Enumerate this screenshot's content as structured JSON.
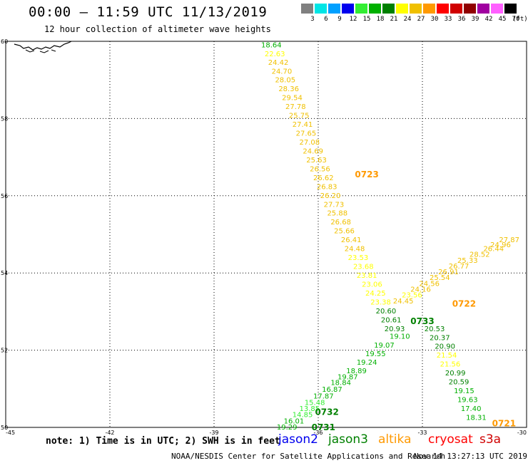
{
  "header": {
    "title": "00:00 – 11:59 UTC 11/13/2019",
    "subtitle": "12 hour collection of altimeter wave heights"
  },
  "legend": {
    "unit": "(ft)",
    "bins": [
      {
        "label": "3",
        "color": "#808080"
      },
      {
        "label": "6",
        "color": "#00e5e5"
      },
      {
        "label": "9",
        "color": "#00a0ff"
      },
      {
        "label": "12",
        "color": "#0000ee"
      },
      {
        "label": "15",
        "color": "#33ee33"
      },
      {
        "label": "18",
        "color": "#00b000"
      },
      {
        "label": "21",
        "color": "#008000"
      },
      {
        "label": "24",
        "color": "#ffff00"
      },
      {
        "label": "27",
        "color": "#f0c000"
      },
      {
        "label": "30",
        "color": "#ff9900"
      },
      {
        "label": "33",
        "color": "#ff0000"
      },
      {
        "label": "36",
        "color": "#d00000"
      },
      {
        "label": "39",
        "color": "#900000"
      },
      {
        "label": "42",
        "color": "#a000a0"
      },
      {
        "label": "45",
        "color": "#ff60ff"
      },
      {
        "label": "70",
        "color": "#000000"
      }
    ]
  },
  "map": {
    "lat_range": [
      50,
      60
    ],
    "lon_range": [
      -45,
      -30
    ],
    "lat_ticks": [
      "50",
      "52",
      "54",
      "56",
      "58",
      "60"
    ],
    "lon_ticks": [
      "-45",
      "-42",
      "-39",
      "-36",
      "-33",
      "-30"
    ],
    "grid": true
  },
  "tracks": [
    {
      "id": "0723",
      "satellite": "altika",
      "label_color": "#ff9900",
      "label_lat": 56.55,
      "label_lon": -34.6,
      "points": [
        {
          "v": "18.64",
          "lat": 59.9,
          "lon": -37.35,
          "c": "#00b000"
        },
        {
          "v": "22.63",
          "lat": 59.67,
          "lon": -37.25,
          "c": "#ffff00"
        },
        {
          "v": "24.42",
          "lat": 59.45,
          "lon": -37.15,
          "c": "#f0c000"
        },
        {
          "v": "24.70",
          "lat": 59.22,
          "lon": -37.05,
          "c": "#f0c000"
        },
        {
          "v": "28.05",
          "lat": 58.99,
          "lon": -36.95,
          "c": "#f0c000"
        },
        {
          "v": "28.36",
          "lat": 58.76,
          "lon": -36.85,
          "c": "#f0c000"
        },
        {
          "v": "29.54",
          "lat": 58.53,
          "lon": -36.75,
          "c": "#f0c000"
        },
        {
          "v": "27.78",
          "lat": 58.3,
          "lon": -36.65,
          "c": "#f0c000"
        },
        {
          "v": "25.75",
          "lat": 58.07,
          "lon": -36.55,
          "c": "#f0c000"
        },
        {
          "v": "27.41",
          "lat": 57.84,
          "lon": -36.45,
          "c": "#f0c000"
        },
        {
          "v": "27.65",
          "lat": 57.61,
          "lon": -36.35,
          "c": "#f0c000"
        },
        {
          "v": "27.08",
          "lat": 57.38,
          "lon": -36.25,
          "c": "#f0c000"
        },
        {
          "v": "24.69",
          "lat": 57.15,
          "lon": -36.15,
          "c": "#f0c000"
        },
        {
          "v": "25.63",
          "lat": 56.92,
          "lon": -36.05,
          "c": "#f0c000"
        },
        {
          "v": "26.56",
          "lat": 56.69,
          "lon": -35.95,
          "c": "#f0c000"
        },
        {
          "v": "26.62",
          "lat": 56.46,
          "lon": -35.85,
          "c": "#f0c000"
        },
        {
          "v": "26.83",
          "lat": 56.23,
          "lon": -35.75,
          "c": "#f0c000"
        },
        {
          "v": "26.20",
          "lat": 56.0,
          "lon": -35.65,
          "c": "#f0c000"
        },
        {
          "v": "27.73",
          "lat": 55.77,
          "lon": -35.55,
          "c": "#f0c000"
        },
        {
          "v": "25.88",
          "lat": 55.54,
          "lon": -35.45,
          "c": "#f0c000"
        },
        {
          "v": "26.68",
          "lat": 55.31,
          "lon": -35.35,
          "c": "#f0c000"
        },
        {
          "v": "25.66",
          "lat": 55.08,
          "lon": -35.25,
          "c": "#f0c000"
        },
        {
          "v": "26.41",
          "lat": 54.85,
          "lon": -35.05,
          "c": "#f0c000"
        },
        {
          "v": "24.48",
          "lat": 54.62,
          "lon": -34.95,
          "c": "#f0c000"
        },
        {
          "v": "23.53",
          "lat": 54.39,
          "lon": -34.85,
          "c": "#ffff00"
        },
        {
          "v": "23.68",
          "lat": 54.16,
          "lon": -34.7,
          "c": "#ffff00"
        },
        {
          "v": "23.81",
          "lat": 53.93,
          "lon": -34.6,
          "c": "#ffff00"
        },
        {
          "v": "23.06",
          "lat": 53.7,
          "lon": -34.45,
          "c": "#ffff00"
        },
        {
          "v": "24.25",
          "lat": 53.47,
          "lon": -34.35,
          "c": "#ffff00"
        },
        {
          "v": "23.38",
          "lat": 53.24,
          "lon": -34.2,
          "c": "#ffff00"
        },
        {
          "v": "20.60",
          "lat": 53.01,
          "lon": -34.05,
          "c": "#008000"
        },
        {
          "v": "20.61",
          "lat": 52.78,
          "lon": -33.9,
          "c": "#008000"
        },
        {
          "v": "20.93",
          "lat": 52.55,
          "lon": -33.8,
          "c": "#008000"
        },
        {
          "v": "19.10",
          "lat": 52.35,
          "lon": -33.65,
          "c": "#00b000"
        },
        {
          "v": "20.53",
          "lat": 52.55,
          "lon": -32.65,
          "c": "#008000"
        },
        {
          "v": "20.37",
          "lat": 52.32,
          "lon": -32.5,
          "c": "#008000"
        },
        {
          "v": "20.90",
          "lat": 52.09,
          "lon": -32.35,
          "c": "#008000"
        },
        {
          "v": "21.54",
          "lat": 51.86,
          "lon": -32.3,
          "c": "#ffff00"
        },
        {
          "v": "21.56",
          "lat": 51.63,
          "lon": -32.2,
          "c": "#ffff00"
        },
        {
          "v": "20.99",
          "lat": 51.4,
          "lon": -32.05,
          "c": "#008000"
        },
        {
          "v": "20.59",
          "lat": 51.17,
          "lon": -31.95,
          "c": "#008000"
        },
        {
          "v": "19.15",
          "lat": 50.94,
          "lon": -31.8,
          "c": "#00b000"
        },
        {
          "v": "19.63",
          "lat": 50.71,
          "lon": -31.7,
          "c": "#00b000"
        },
        {
          "v": "17.40",
          "lat": 50.48,
          "lon": -31.6,
          "c": "#00b000"
        },
        {
          "v": "18.31",
          "lat": 50.25,
          "lon": -31.45,
          "c": "#00b000"
        }
      ]
    },
    {
      "id": "0722",
      "satellite": "altika",
      "label_color": "#ff9900",
      "label_lat": 53.2,
      "label_lon": -31.8,
      "points": [
        {
          "v": "27.87",
          "lat": 54.85,
          "lon": -30.5,
          "c": "#f0c000"
        },
        {
          "v": "24.96",
          "lat": 54.72,
          "lon": -30.75,
          "c": "#f0c000"
        },
        {
          "v": "26.44",
          "lat": 54.62,
          "lon": -30.95,
          "c": "#f0c000"
        },
        {
          "v": "28.52",
          "lat": 54.47,
          "lon": -31.35,
          "c": "#f0c000"
        },
        {
          "v": "25.33",
          "lat": 54.32,
          "lon": -31.7,
          "c": "#f0c000"
        },
        {
          "v": "26.77",
          "lat": 54.17,
          "lon": -31.95,
          "c": "#f0c000"
        },
        {
          "v": "26.91",
          "lat": 54.02,
          "lon": -32.25,
          "c": "#f0c000"
        },
        {
          "v": "25.54",
          "lat": 53.87,
          "lon": -32.5,
          "c": "#f0c000"
        },
        {
          "v": "24.56",
          "lat": 53.72,
          "lon": -32.8,
          "c": "#f0c000"
        },
        {
          "v": "24.16",
          "lat": 53.57,
          "lon": -33.05,
          "c": "#f0c000"
        },
        {
          "v": "23.56",
          "lat": 53.42,
          "lon": -33.3,
          "c": "#ffff00"
        },
        {
          "v": "24.45",
          "lat": 53.27,
          "lon": -33.55,
          "c": "#f0c000"
        }
      ]
    },
    {
      "id": "0721",
      "satellite": "altika",
      "label_color": "#ff9900",
      "label_lat": 50.1,
      "label_lon": -30.65,
      "points": []
    },
    {
      "id": "0733",
      "satellite": "jason3",
      "label_color": "#008000",
      "label_lat": 52.75,
      "label_lon": -33.0,
      "points": []
    },
    {
      "id": "0732",
      "satellite": "jason3",
      "label_color": "#008000",
      "label_lat": 50.4,
      "label_lon": -35.75,
      "points": [
        {
          "v": "19.07",
          "lat": 52.12,
          "lon": -34.1,
          "c": "#00b000"
        },
        {
          "v": "19.55",
          "lat": 51.9,
          "lon": -34.35,
          "c": "#00b000"
        },
        {
          "v": "19.24",
          "lat": 51.68,
          "lon": -34.6,
          "c": "#00b000"
        },
        {
          "v": "18.89",
          "lat": 51.46,
          "lon": -34.9,
          "c": "#00b000"
        },
        {
          "v": "19.87",
          "lat": 51.3,
          "lon": -35.15,
          "c": "#00b000"
        },
        {
          "v": "18.84",
          "lat": 51.15,
          "lon": -35.35,
          "c": "#00b000"
        },
        {
          "v": "16.87",
          "lat": 50.98,
          "lon": -35.6,
          "c": "#00b000"
        },
        {
          "v": "17.87",
          "lat": 50.8,
          "lon": -35.85,
          "c": "#00b000"
        },
        {
          "v": "15.48",
          "lat": 50.64,
          "lon": -36.1,
          "c": "#33ee33"
        },
        {
          "v": "13.85",
          "lat": 50.48,
          "lon": -36.25,
          "c": "#33ee33"
        },
        {
          "v": "14.85",
          "lat": 50.32,
          "lon": -36.45,
          "c": "#33ee33"
        },
        {
          "v": "16.01",
          "lat": 50.16,
          "lon": -36.7,
          "c": "#00b000"
        },
        {
          "v": "19.29",
          "lat": 50.0,
          "lon": -36.9,
          "c": "#00b000"
        }
      ]
    },
    {
      "id": "0731",
      "satellite": "jason3",
      "label_color": "#008000",
      "label_lat": 50.0,
      "label_lon": -35.85,
      "points": []
    }
  ],
  "footer": {
    "note": "note: 1) Time is in UTC; 2) SWH is in feet",
    "satellites": [
      {
        "name": "jason2",
        "color": "#0000ee"
      },
      {
        "name": "jason3",
        "color": "#008000"
      },
      {
        "name": "altika",
        "color": "#ff9900"
      },
      {
        "name": "cryosat",
        "color": "#ff0000"
      },
      {
        "name": "s3a",
        "color": "#d00000"
      }
    ],
    "credit": "NOAA/NESDIS Center for Satellite Applications and Research",
    "timestamp": "Nov 14 13:27:13 UTC 2019"
  }
}
